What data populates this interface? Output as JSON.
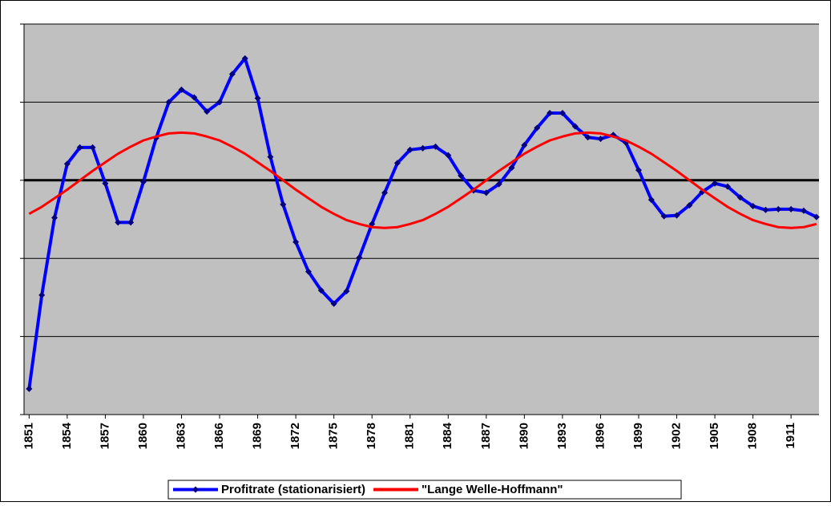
{
  "chart_data": {
    "type": "line",
    "x": [
      1851,
      1852,
      1853,
      1854,
      1855,
      1856,
      1857,
      1858,
      1859,
      1860,
      1861,
      1862,
      1863,
      1864,
      1865,
      1866,
      1867,
      1868,
      1869,
      1870,
      1871,
      1872,
      1873,
      1874,
      1875,
      1876,
      1877,
      1878,
      1879,
      1880,
      1881,
      1882,
      1883,
      1884,
      1885,
      1886,
      1887,
      1888,
      1889,
      1890,
      1891,
      1892,
      1893,
      1894,
      1895,
      1896,
      1897,
      1898,
      1899,
      1900,
      1901,
      1902,
      1903,
      1904,
      1905,
      1906,
      1907,
      1908,
      1909,
      1910,
      1911,
      1912,
      1913
    ],
    "series": [
      {
        "name": "Profitrate (stationarisiert)",
        "color": "#0000ff",
        "marker_color": "#000080",
        "values": [
          -2.67,
          -1.47,
          -0.48,
          0.21,
          0.42,
          0.42,
          -0.04,
          -0.54,
          -0.54,
          -0.02,
          0.54,
          1.0,
          1.16,
          1.06,
          0.88,
          1.0,
          1.36,
          1.56,
          1.05,
          0.3,
          -0.31,
          -0.79,
          -1.17,
          -1.41,
          -1.58,
          -1.42,
          -0.99,
          -0.56,
          -0.16,
          0.22,
          0.39,
          0.41,
          0.43,
          0.32,
          0.06,
          -0.13,
          -0.16,
          -0.05,
          0.16,
          0.45,
          0.67,
          0.86,
          0.86,
          0.69,
          0.55,
          0.53,
          0.58,
          0.48,
          0.13,
          -0.25,
          -0.46,
          -0.45,
          -0.32,
          -0.15,
          -0.04,
          -0.08,
          -0.22,
          -0.33,
          -0.38,
          -0.37,
          -0.37,
          -0.39,
          -0.47
        ]
      },
      {
        "name": "\"Lange Welle-Hoffmann\"",
        "color": "#ff0000",
        "values": [
          -0.43,
          -0.34,
          -0.23,
          -0.12,
          0,
          0.12,
          0.23,
          0.34,
          0.43,
          0.51,
          0.56,
          0.6,
          0.61,
          0.6,
          0.56,
          0.51,
          0.43,
          0.34,
          0.23,
          0.12,
          0,
          -0.12,
          -0.23,
          -0.34,
          -0.43,
          -0.51,
          -0.56,
          -0.6,
          -0.61,
          -0.6,
          -0.56,
          -0.51,
          -0.43,
          -0.34,
          -0.23,
          -0.12,
          0,
          0.12,
          0.23,
          0.34,
          0.43,
          0.51,
          0.56,
          0.6,
          0.61,
          0.6,
          0.56,
          0.51,
          0.43,
          0.34,
          0.23,
          0.12,
          0,
          -0.12,
          -0.23,
          -0.34,
          -0.43,
          -0.51,
          -0.56,
          -0.6,
          -0.61,
          -0.6,
          -0.56
        ]
      }
    ],
    "xlim": [
      1850.6,
      1913.2
    ],
    "xticks": [
      1851,
      1854,
      1857,
      1860,
      1863,
      1866,
      1869,
      1872,
      1875,
      1878,
      1881,
      1884,
      1887,
      1890,
      1893,
      1896,
      1899,
      1902,
      1905,
      1908,
      1911
    ],
    "ylim": [
      -3,
      2
    ],
    "yticks": [
      -3,
      -2,
      -1,
      0,
      1,
      2
    ],
    "grid": true,
    "zero_line": true,
    "plot_background": "#c0c0c0",
    "legend": "bottom"
  }
}
